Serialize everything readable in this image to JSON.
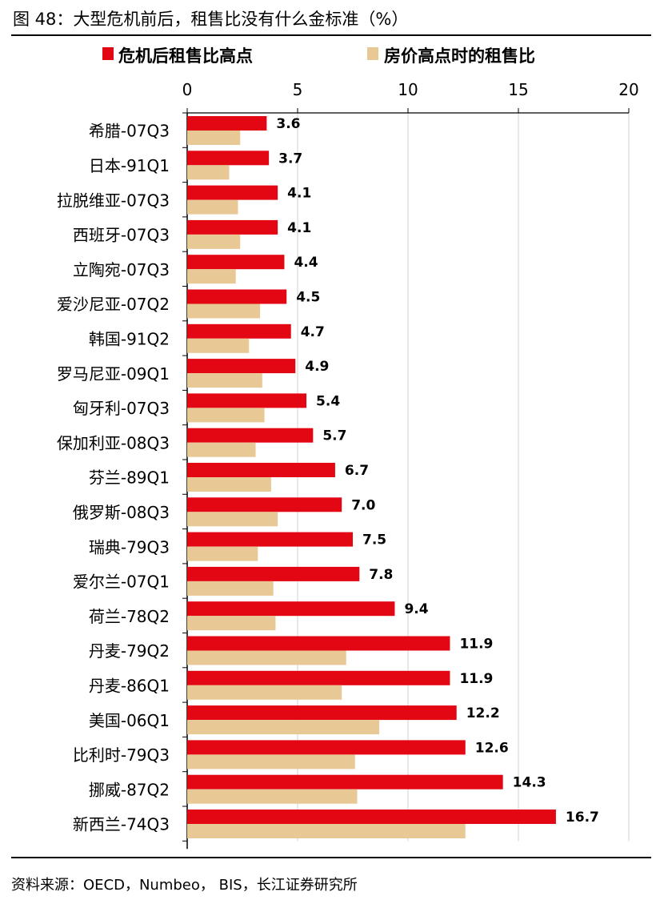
{
  "title": "图 48：大型危机前后，租售比没有什么金标准（%）",
  "source": "资料来源：OECD，Numbeo， BIS，长江证券研究所",
  "colors": {
    "crisis_high": "#e30613",
    "price_peak": "#e8c995",
    "axis": "#000000",
    "grid": "#d0d0d0"
  },
  "chart_data": {
    "type": "bar",
    "orientation": "horizontal",
    "x_ticks": [
      0,
      5,
      10,
      15,
      20
    ],
    "xlim": [
      0,
      20
    ],
    "x_axis_position": "top",
    "grid": true,
    "legend_position": "top",
    "categories": [
      "希腊-07Q3",
      "日本-91Q1",
      "拉脱维亚-07Q3",
      "西班牙-07Q3",
      "立陶宛-07Q3",
      "爱沙尼亚-07Q2",
      "韩国-91Q2",
      "罗马尼亚-09Q1",
      "匈牙利-07Q3",
      "保加利亚-08Q3",
      "芬兰-89Q1",
      "俄罗斯-08Q3",
      "瑞典-79Q3",
      "爱尔兰-07Q1",
      "荷兰-78Q2",
      "丹麦-79Q2",
      "丹麦-86Q1",
      "美国-06Q1",
      "比利时-79Q3",
      "挪威-87Q2",
      "新西兰-74Q3"
    ],
    "series": [
      {
        "name": "危机后租售比高点",
        "color": "#e30613",
        "values": [
          3.6,
          3.7,
          4.1,
          4.1,
          4.4,
          4.5,
          4.7,
          4.9,
          5.4,
          5.7,
          6.7,
          7.0,
          7.5,
          7.8,
          9.4,
          11.9,
          11.9,
          12.2,
          12.6,
          14.3,
          16.7
        ],
        "labels": [
          "3.6",
          "3.7",
          "4.1",
          "4.1",
          "4.4",
          "4.5",
          "4.7",
          "4.9",
          "5.4",
          "5.7",
          "6.7",
          "7.0",
          "7.5",
          "7.8",
          "9.4",
          "11.9",
          "11.9",
          "12.2",
          "12.6",
          "14.3",
          "16.7"
        ]
      },
      {
        "name": "房价高点时的租售比",
        "color": "#e8c995",
        "values": [
          2.4,
          1.9,
          2.3,
          2.4,
          2.2,
          3.3,
          2.8,
          3.4,
          3.5,
          3.1,
          3.8,
          4.1,
          3.2,
          3.9,
          4.0,
          7.2,
          7.0,
          8.7,
          7.6,
          7.7,
          12.6
        ]
      }
    ]
  }
}
